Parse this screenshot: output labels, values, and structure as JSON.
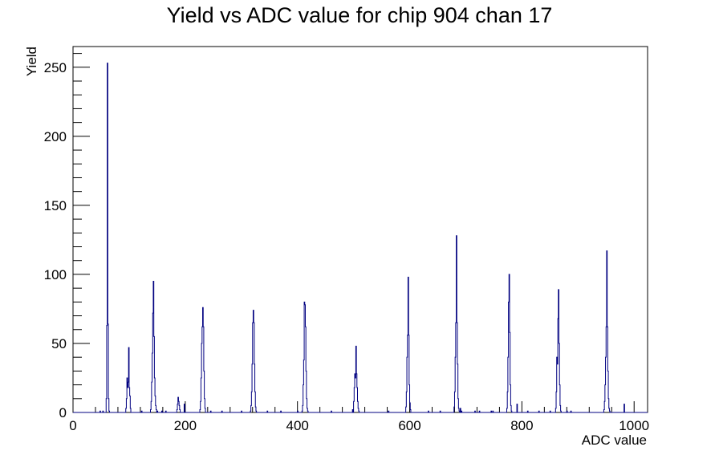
{
  "chart_data": {
    "type": "histogram",
    "title": "Yield vs ADC value for chip 904 chan 17",
    "xlabel": "ADC value",
    "ylabel": "Yield",
    "xlim": [
      0,
      1024
    ],
    "ylim": [
      0,
      265
    ],
    "xticks": [
      0,
      200,
      400,
      600,
      800,
      1000
    ],
    "yticks": [
      0,
      50,
      100,
      150,
      200,
      250
    ],
    "bin_width": 1,
    "grid": false,
    "line_color": "#000080",
    "bins": [
      [
        48,
        1
      ],
      [
        53,
        1
      ],
      [
        59,
        10
      ],
      [
        60,
        63
      ],
      [
        61,
        253
      ],
      [
        62,
        64
      ],
      [
        63,
        10
      ],
      [
        64,
        1
      ],
      [
        94,
        3
      ],
      [
        95,
        10
      ],
      [
        96,
        25
      ],
      [
        97,
        18
      ],
      [
        98,
        22
      ],
      [
        99,
        47
      ],
      [
        100,
        18
      ],
      [
        101,
        12
      ],
      [
        102,
        3
      ],
      [
        122,
        1
      ],
      [
        138,
        2
      ],
      [
        139,
        8
      ],
      [
        140,
        22
      ],
      [
        141,
        43
      ],
      [
        142,
        72
      ],
      [
        143,
        95
      ],
      [
        144,
        55
      ],
      [
        145,
        25
      ],
      [
        146,
        12
      ],
      [
        147,
        5
      ],
      [
        148,
        2
      ],
      [
        150,
        1
      ],
      [
        158,
        1
      ],
      [
        165,
        1
      ],
      [
        185,
        2
      ],
      [
        186,
        6
      ],
      [
        187,
        11
      ],
      [
        188,
        8
      ],
      [
        189,
        5
      ],
      [
        190,
        2
      ],
      [
        198,
        6
      ],
      [
        226,
        2
      ],
      [
        227,
        8
      ],
      [
        228,
        25
      ],
      [
        229,
        50
      ],
      [
        230,
        62
      ],
      [
        231,
        76
      ],
      [
        232,
        62
      ],
      [
        233,
        30
      ],
      [
        234,
        10
      ],
      [
        235,
        3
      ],
      [
        245,
        1
      ],
      [
        265,
        1
      ],
      [
        300,
        1
      ],
      [
        316,
        1
      ],
      [
        317,
        5
      ],
      [
        318,
        15
      ],
      [
        319,
        35
      ],
      [
        320,
        65
      ],
      [
        321,
        74
      ],
      [
        322,
        65
      ],
      [
        323,
        35
      ],
      [
        324,
        15
      ],
      [
        325,
        4
      ],
      [
        326,
        1
      ],
      [
        346,
        1
      ],
      [
        370,
        1
      ],
      [
        400,
        1
      ],
      [
        408,
        1
      ],
      [
        409,
        5
      ],
      [
        410,
        20
      ],
      [
        411,
        38
      ],
      [
        412,
        80
      ],
      [
        413,
        78
      ],
      [
        414,
        62
      ],
      [
        415,
        30
      ],
      [
        416,
        10
      ],
      [
        417,
        3
      ],
      [
        418,
        1
      ],
      [
        460,
        1
      ],
      [
        498,
        2
      ],
      [
        500,
        8
      ],
      [
        501,
        18
      ],
      [
        502,
        28
      ],
      [
        503,
        25
      ],
      [
        504,
        48
      ],
      [
        505,
        28
      ],
      [
        506,
        18
      ],
      [
        507,
        8
      ],
      [
        508,
        3
      ],
      [
        509,
        1
      ],
      [
        562,
        1
      ],
      [
        593,
        4
      ],
      [
        594,
        15
      ],
      [
        595,
        40
      ],
      [
        596,
        56
      ],
      [
        597,
        98
      ],
      [
        598,
        56
      ],
      [
        599,
        20
      ],
      [
        600,
        7
      ],
      [
        601,
        2
      ],
      [
        633,
        1
      ],
      [
        654,
        1
      ],
      [
        679,
        4
      ],
      [
        680,
        15
      ],
      [
        681,
        40
      ],
      [
        682,
        65
      ],
      [
        683,
        128
      ],
      [
        684,
        65
      ],
      [
        685,
        35
      ],
      [
        686,
        10
      ],
      [
        687,
        3
      ],
      [
        688,
        1
      ],
      [
        690,
        3
      ],
      [
        692,
        1
      ],
      [
        716,
        1
      ],
      [
        724,
        1
      ],
      [
        745,
        1
      ],
      [
        748,
        1
      ],
      [
        773,
        3
      ],
      [
        774,
        15
      ],
      [
        775,
        40
      ],
      [
        776,
        80
      ],
      [
        777,
        100
      ],
      [
        778,
        58
      ],
      [
        779,
        20
      ],
      [
        780,
        5
      ],
      [
        781,
        1
      ],
      [
        791,
        6
      ],
      [
        810,
        1
      ],
      [
        830,
        1
      ],
      [
        850,
        1
      ],
      [
        860,
        3
      ],
      [
        861,
        15
      ],
      [
        862,
        40
      ],
      [
        863,
        35
      ],
      [
        864,
        68
      ],
      [
        865,
        89
      ],
      [
        866,
        50
      ],
      [
        867,
        20
      ],
      [
        868,
        5
      ],
      [
        869,
        1
      ],
      [
        880,
        1
      ],
      [
        887,
        1
      ],
      [
        946,
        2
      ],
      [
        947,
        8
      ],
      [
        948,
        20
      ],
      [
        949,
        40
      ],
      [
        950,
        62
      ],
      [
        951,
        117
      ],
      [
        952,
        62
      ],
      [
        953,
        30
      ],
      [
        954,
        10
      ],
      [
        955,
        3
      ],
      [
        956,
        1
      ],
      [
        982,
        6
      ]
    ]
  }
}
